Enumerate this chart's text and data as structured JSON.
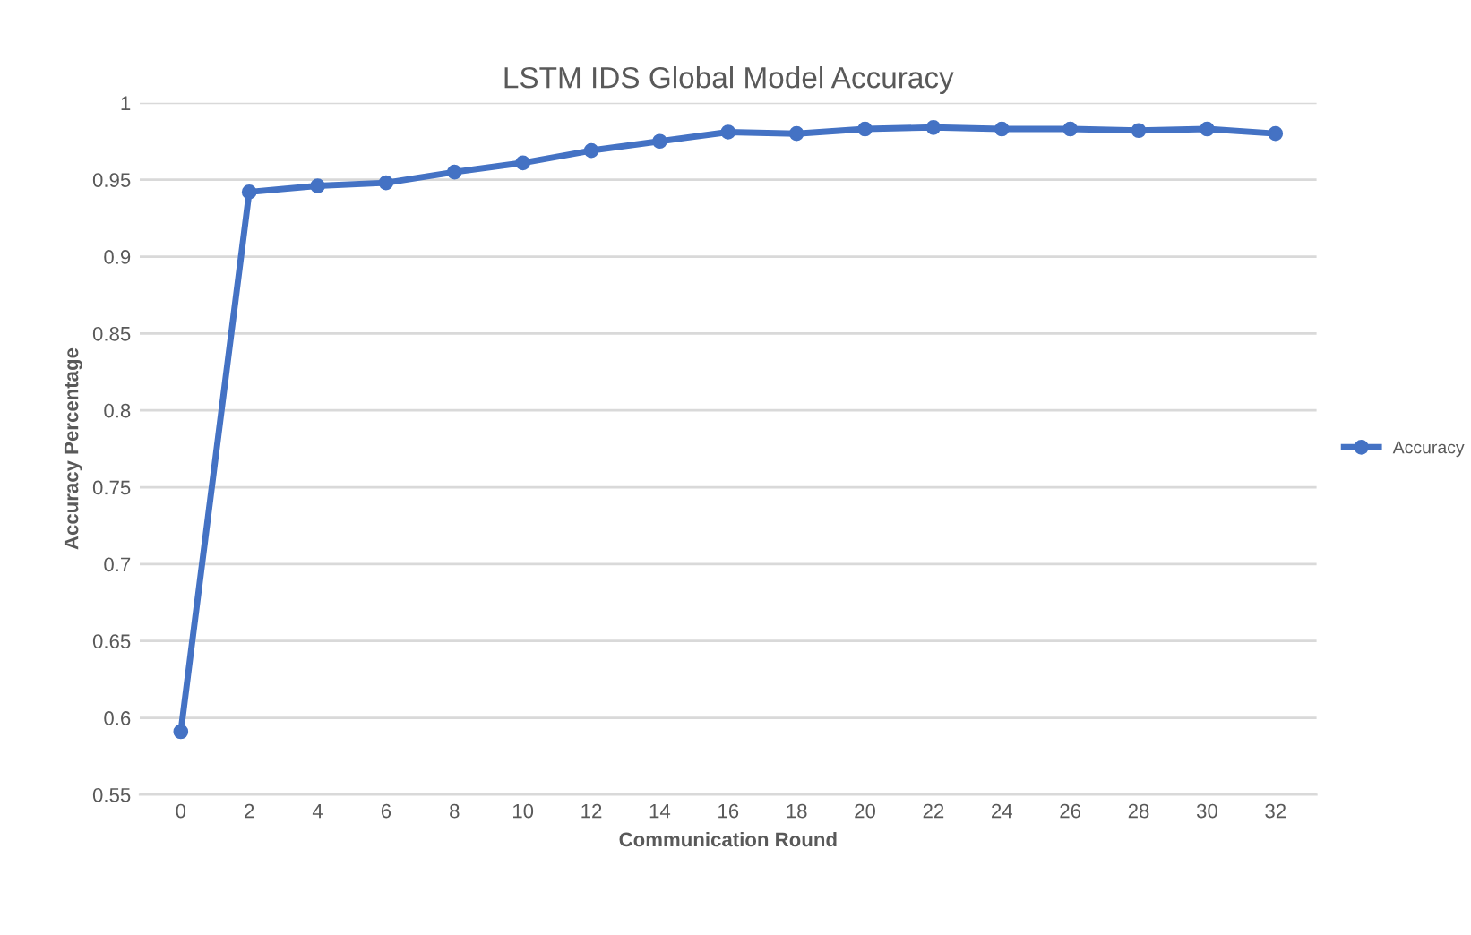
{
  "chart_data": {
    "type": "line",
    "title": "LSTM IDS Global Model Accuracy",
    "xlabel": "Communication Round",
    "ylabel": "Accuracy Percentage",
    "categories": [
      "0",
      "2",
      "4",
      "6",
      "8",
      "10",
      "12",
      "14",
      "16",
      "18",
      "20",
      "22",
      "24",
      "26",
      "28",
      "30",
      "32"
    ],
    "series": [
      {
        "name": "Accuracy",
        "color": "#4472c4",
        "values": [
          0.591,
          0.942,
          0.946,
          0.948,
          0.955,
          0.961,
          0.969,
          0.975,
          0.981,
          0.98,
          0.983,
          0.984,
          0.983,
          0.983,
          0.982,
          0.983,
          0.98
        ]
      }
    ],
    "ylim": [
      0.55,
      1
    ],
    "yticks": [
      0.55,
      0.6,
      0.65,
      0.7,
      0.75,
      0.8,
      0.85,
      0.9,
      0.95,
      1
    ],
    "grid": "y",
    "legend": "right",
    "marker": "circle",
    "line_style": "solid"
  }
}
